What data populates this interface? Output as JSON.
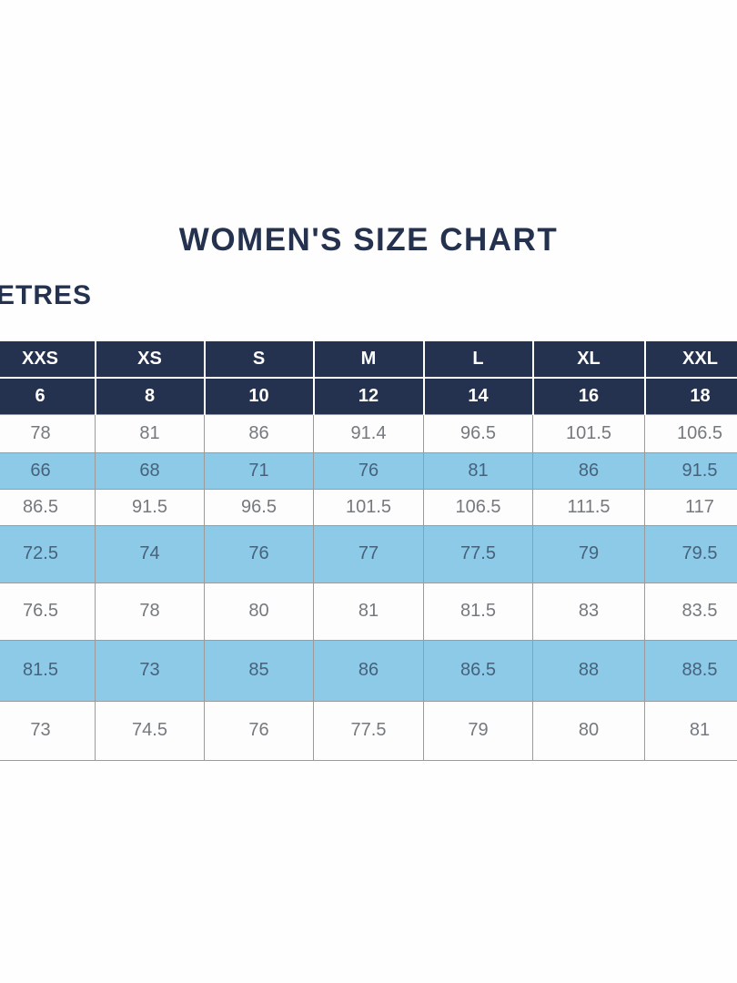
{
  "title": "WOMEN'S SIZE CHART",
  "units_label": "ETRES",
  "colors": {
    "navy": "#24324f",
    "light_blue": "#8ccae8",
    "grid_line": "#9b9b9b",
    "white_row_text": "#75797e",
    "blue_row_text": "#46627b",
    "header_text": "#ffffff"
  },
  "table": {
    "size_labels": [
      "XXS",
      "XS",
      "S",
      "M",
      "L",
      "XL",
      "XXL"
    ],
    "size_numbers": [
      "6",
      "8",
      "10",
      "12",
      "14",
      "16",
      "18"
    ],
    "rows": [
      {
        "shade": "white",
        "values": [
          "78",
          "81",
          "86",
          "91.4",
          "96.5",
          "101.5",
          "106.5"
        ]
      },
      {
        "shade": "blue",
        "values": [
          "66",
          "68",
          "71",
          "76",
          "81",
          "86",
          "91.5"
        ]
      },
      {
        "shade": "white",
        "values": [
          "86.5",
          "91.5",
          "96.5",
          "101.5",
          "106.5",
          "111.5",
          "117"
        ]
      },
      {
        "shade": "blue",
        "values": [
          "72.5",
          "74",
          "76",
          "77",
          "77.5",
          "79",
          "79.5"
        ]
      },
      {
        "shade": "white",
        "values": [
          "76.5",
          "78",
          "80",
          "81",
          "81.5",
          "83",
          "83.5"
        ]
      },
      {
        "shade": "blue",
        "values": [
          "81.5",
          "73",
          "85",
          "86",
          "86.5",
          "88",
          "88.5"
        ]
      },
      {
        "shade": "white",
        "values": [
          "73",
          "74.5",
          "76",
          "77.5",
          "79",
          "80",
          "81"
        ]
      }
    ]
  }
}
